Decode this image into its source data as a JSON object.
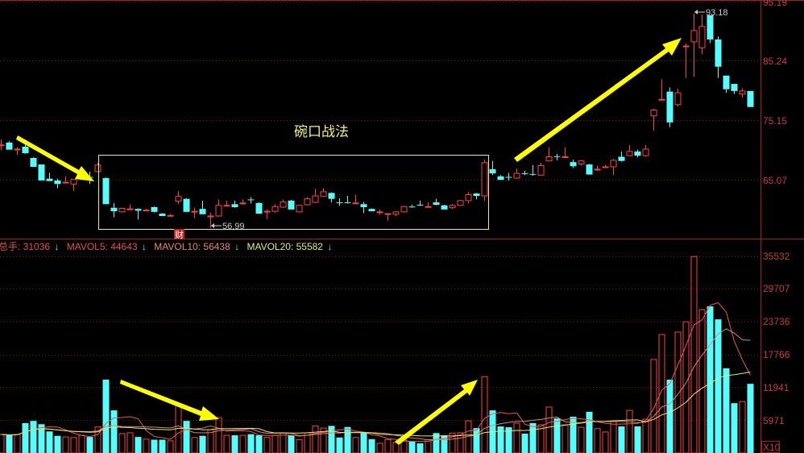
{
  "colors": {
    "up": "#ff4040",
    "down": "#54ffff",
    "grid": "#7a1a1a",
    "axis": "#c83c3c",
    "annotation": "#ffff00",
    "ma5": "#e85a5a",
    "ma10": "#d88a70",
    "ma20": "#e8e870"
  },
  "annotation": {
    "title": "碗口战法",
    "low_label": "56.99",
    "high_label": "93.18",
    "finance_marker": "财"
  },
  "volume_header": {
    "total_label": "总手: 31036",
    "mavol5_label": "MAVOL5: 44643",
    "mavol10_label": "MAVOL10: 56438",
    "mavol20_label": "MAVOL20: 55582",
    "arrow_icon": "↓"
  },
  "chart_data": [
    {
      "type": "candlestick",
      "price_axis_ticks": [
        "95.19",
        "85.24",
        "75.15",
        "65.07"
      ],
      "ylim": [
        56.99,
        95.19
      ],
      "grid": true,
      "highlight_box": "bowl-shaped consolidation",
      "candles_ohlc": [
        [
          70.9,
          71.9,
          70.1,
          71.0
        ],
        [
          71.4,
          71.6,
          70.2,
          70.2
        ],
        [
          70.2,
          70.6,
          69.3,
          70.3
        ],
        [
          70.7,
          71.9,
          69.5,
          69.6
        ],
        [
          68.8,
          68.9,
          67.3,
          67.3
        ],
        [
          67.7,
          67.7,
          65.0,
          65.0
        ],
        [
          65.3,
          66.3,
          64.9,
          64.9
        ],
        [
          65.0,
          65.3,
          63.7,
          64.4
        ],
        [
          64.6,
          65.7,
          64.6,
          64.7
        ],
        [
          64.4,
          65.2,
          63.2,
          65.2
        ],
        [
          65.4,
          65.9,
          65.2,
          65.5
        ],
        [
          65.6,
          66.5,
          64.4,
          65.5
        ],
        [
          66.5,
          68.0,
          66.4,
          67.6
        ],
        [
          65.4,
          65.5,
          61.0,
          61.0
        ],
        [
          60.4,
          61.2,
          58.8,
          59.8
        ],
        [
          59.7,
          60.4,
          59.6,
          60.3
        ],
        [
          60.1,
          61.0,
          60.0,
          60.2
        ],
        [
          60.2,
          60.3,
          58.4,
          59.9
        ],
        [
          59.9,
          60.2,
          59.8,
          60.0
        ],
        [
          60.5,
          60.6,
          59.6,
          59.7
        ],
        [
          59.4,
          59.5,
          59.0,
          59.0
        ],
        [
          59.0,
          59.3,
          59.0,
          59.1
        ],
        [
          61.5,
          63.2,
          61.0,
          62.3
        ],
        [
          61.9,
          62.0,
          59.7,
          59.7
        ],
        [
          59.7,
          60.4,
          58.6,
          59.8
        ],
        [
          60.2,
          61.6,
          59.3,
          59.3
        ],
        [
          58.9,
          59.6,
          56.99,
          59.0
        ],
        [
          59.0,
          61.8,
          58.9,
          60.8
        ],
        [
          60.7,
          61.6,
          60.6,
          60.8
        ],
        [
          61.0,
          61.6,
          60.4,
          60.5
        ],
        [
          61.1,
          61.8,
          60.9,
          61.2
        ],
        [
          61.8,
          62.2,
          61.1,
          61.7
        ],
        [
          61.2,
          61.3,
          59.4,
          59.4
        ],
        [
          59.7,
          60.1,
          58.5,
          59.8
        ],
        [
          59.8,
          61.0,
          59.6,
          60.6
        ],
        [
          60.5,
          61.8,
          60.4,
          61.4
        ],
        [
          61.6,
          61.7,
          60.1,
          60.1
        ],
        [
          59.7,
          60.9,
          59.6,
          60.8
        ],
        [
          60.9,
          62.2,
          60.8,
          61.9
        ],
        [
          61.3,
          63.6,
          61.2,
          62.4
        ],
        [
          62.3,
          63.7,
          62.2,
          63.1
        ],
        [
          62.9,
          63.0,
          61.3,
          61.9
        ],
        [
          61.3,
          62.0,
          60.7,
          61.2
        ],
        [
          61.3,
          62.4,
          61.1,
          61.2
        ],
        [
          61.1,
          62.6,
          61.1,
          61.2
        ],
        [
          61.0,
          61.4,
          59.5,
          60.5
        ],
        [
          60.2,
          60.3,
          59.8,
          59.8
        ],
        [
          59.6,
          60.1,
          59.2,
          59.7
        ],
        [
          59.3,
          59.5,
          58.2,
          59.4
        ],
        [
          59.3,
          59.8,
          59.0,
          59.7
        ],
        [
          59.7,
          60.7,
          59.6,
          60.6
        ],
        [
          60.6,
          60.9,
          60.4,
          60.5
        ],
        [
          60.9,
          61.6,
          60.7,
          60.8
        ],
        [
          60.5,
          61.3,
          60.4,
          60.6
        ],
        [
          61.3,
          61.9,
          60.8,
          60.9
        ],
        [
          60.8,
          60.9,
          60.1,
          60.1
        ],
        [
          60.4,
          61.0,
          60.2,
          60.8
        ],
        [
          60.8,
          61.7,
          60.7,
          61.6
        ],
        [
          61.6,
          63.1,
          61.1,
          62.6
        ],
        [
          62.8,
          62.9,
          61.8,
          62.4
        ],
        [
          62.4,
          68.5,
          61.6,
          68.0
        ],
        [
          66.9,
          68.3,
          65.9,
          66.2
        ],
        [
          65.7,
          65.9,
          65.1,
          65.1
        ],
        [
          65.6,
          66.3,
          65.0,
          65.5
        ],
        [
          65.4,
          67.0,
          65.3,
          66.2
        ],
        [
          66.2,
          66.6,
          65.9,
          66.1
        ],
        [
          66.1,
          67.6,
          65.8,
          66.0
        ],
        [
          65.9,
          68.0,
          65.8,
          67.5
        ],
        [
          68.3,
          70.6,
          68.2,
          69.0
        ],
        [
          69.1,
          69.5,
          68.4,
          69.0
        ],
        [
          68.9,
          70.6,
          68.9,
          69.0
        ],
        [
          68.1,
          68.5,
          67.1,
          67.4
        ],
        [
          67.8,
          68.4,
          67.5,
          68.3
        ],
        [
          67.7,
          67.8,
          66.0,
          66.0
        ],
        [
          66.8,
          67.5,
          66.6,
          66.9
        ],
        [
          67.2,
          67.6,
          67.1,
          67.3
        ],
        [
          67.3,
          68.6,
          65.9,
          68.4
        ],
        [
          69.0,
          69.9,
          68.2,
          68.3
        ],
        [
          69.2,
          71.0,
          69.1,
          69.9
        ],
        [
          69.9,
          70.2,
          68.9,
          69.2
        ],
        [
          69.2,
          71.0,
          69.0,
          70.3
        ],
        [
          75.9,
          77.1,
          73.4,
          76.9
        ],
        [
          78.7,
          82.1,
          78.4,
          78.7
        ],
        [
          80.0,
          80.7,
          74.0,
          74.8
        ],
        [
          77.8,
          80.5,
          77.5,
          79.8
        ],
        [
          87.6,
          88.1,
          82.3,
          87.7
        ],
        [
          88.4,
          93.18,
          82.5,
          90.3
        ],
        [
          87.4,
          93.0,
          86.3,
          91.0
        ],
        [
          92.9,
          92.9,
          88.2,
          88.8
        ],
        [
          88.8,
          89.3,
          82.3,
          84.2
        ],
        [
          82.7,
          82.7,
          79.8,
          80.4
        ],
        [
          81.3,
          81.3,
          79.6,
          80.1
        ],
        [
          79.6,
          80.6,
          79.0,
          80.1
        ],
        [
          80.1,
          80.1,
          77.4,
          77.4
        ]
      ]
    },
    {
      "type": "bar",
      "volume_axis_ticks": [
        "35532",
        "29707",
        "23736",
        "17766",
        "11941",
        "5971"
      ],
      "unit_label": "X10",
      "ylim": [
        0,
        35532
      ],
      "grid": true,
      "moving_averages": [
        5,
        10,
        20
      ],
      "volumes": [
        3350,
        3200,
        3350,
        5400,
        5800,
        5200,
        3900,
        3100,
        2900,
        2800,
        3200,
        2900,
        4700,
        13250,
        7700,
        3500,
        3650,
        2900,
        2500,
        2400,
        2400,
        2200,
        8600,
        5800,
        2800,
        3100,
        4200,
        6400,
        3200,
        3200,
        3200,
        3400,
        3200,
        2800,
        3200,
        3650,
        3200,
        2400,
        3650,
        4900,
        4500,
        4900,
        2800,
        4700,
        2800,
        3650,
        2500,
        1750,
        2400,
        1900,
        2300,
        2100,
        1750,
        2400,
        3600,
        3200,
        3600,
        3650,
        5800,
        4500,
        13800,
        7700,
        4800,
        4650,
        5400,
        3500,
        5400,
        5100,
        8300,
        6250,
        5100,
        6550,
        4650,
        7450,
        4400,
        3800,
        5700,
        4800,
        7700,
        4800,
        6100,
        16900,
        21400,
        13250,
        21850,
        23700,
        35500,
        25900,
        26500,
        24150,
        15300,
        9000,
        9300,
        12500
      ]
    }
  ]
}
